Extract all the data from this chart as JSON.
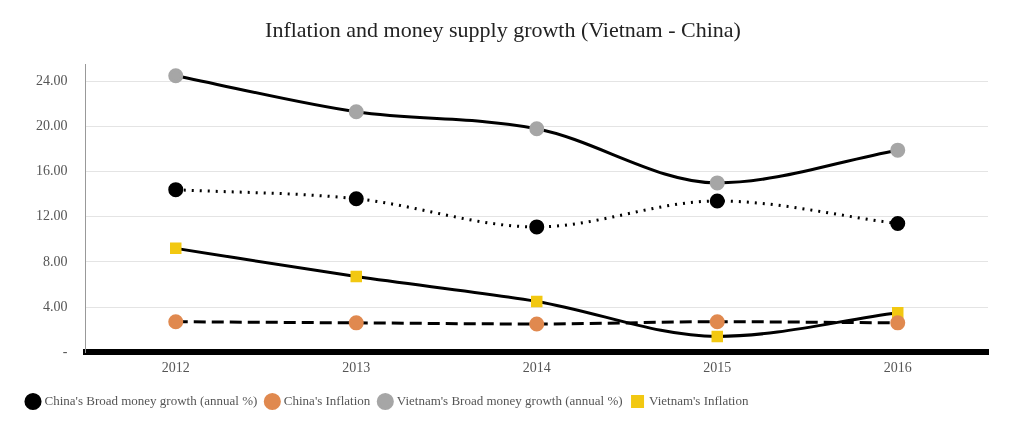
{
  "chart_data": {
    "type": "line",
    "title": "Inflation and money supply growth (Vietnam - China)",
    "categories": [
      "2012",
      "2013",
      "2014",
      "2015",
      "2016"
    ],
    "series": [
      {
        "name": "China's Broad money growth (annual %)",
        "color": "#000000",
        "values": [
          14.4,
          13.6,
          11.1,
          13.4,
          11.4
        ],
        "line_style": "dotted",
        "marker": "circle"
      },
      {
        "name": "China's Inflation",
        "color": "#e0894f",
        "values": [
          2.7,
          2.6,
          2.5,
          2.7,
          2.6
        ],
        "line_style": "dashed",
        "marker": "circle"
      },
      {
        "name": "Vietnam's Broad money growth (annual %)",
        "color": "#a6a6a6",
        "values": [
          24.5,
          21.3,
          19.8,
          15.0,
          17.9
        ],
        "line_style": "solid",
        "marker": "circle"
      },
      {
        "name": "Vietnam's Inflation",
        "color": "#f2c811",
        "values": [
          9.2,
          6.7,
          4.5,
          1.4,
          3.5
        ],
        "line_style": "solid",
        "marker": "square"
      }
    ],
    "ylim": [
      0,
      25.5
    ],
    "yticks": [
      {
        "value": 0,
        "label": "-"
      },
      {
        "value": 4,
        "label": "4.00"
      },
      {
        "value": 8,
        "label": "8.00"
      },
      {
        "value": 12,
        "label": "12.00"
      },
      {
        "value": 16,
        "label": "16.00"
      },
      {
        "value": 20,
        "label": "20.00"
      },
      {
        "value": 24,
        "label": "24.00"
      }
    ],
    "grid": "y",
    "legend": "bottom"
  }
}
